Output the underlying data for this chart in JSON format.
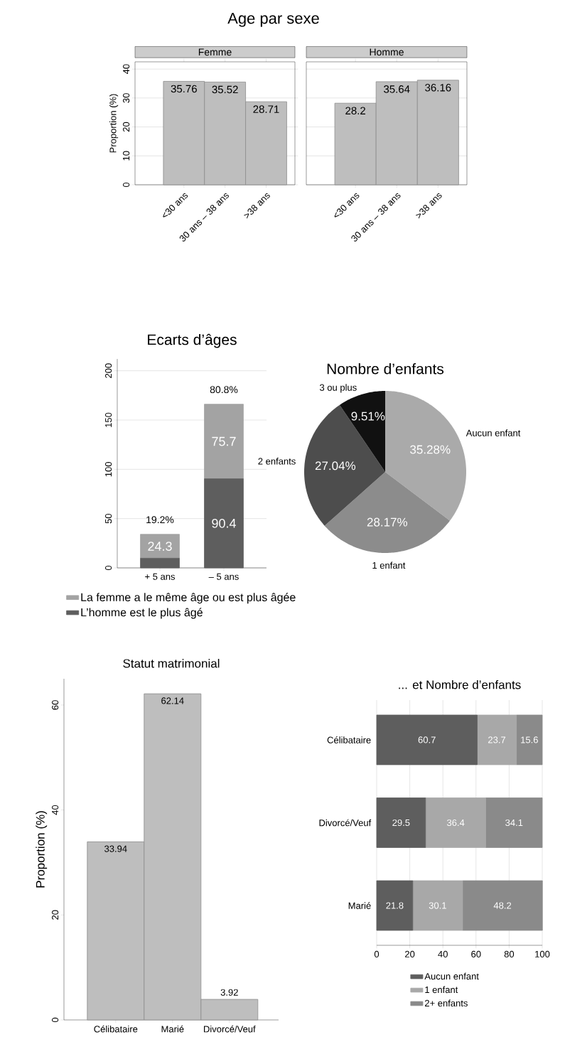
{
  "chart_data": [
    {
      "type": "bar",
      "title": "Age par sexe",
      "subtitle": "Femme",
      "ylabel": "Proportion (%)",
      "categories": [
        "<30 ans",
        "30 ans – 38 ans",
        ">38 ans"
      ],
      "values": [
        35.76,
        35.52,
        28.71
      ],
      "color": "#bebebe",
      "ylim": [
        0,
        42.5
      ],
      "yticks": [
        0,
        10,
        20,
        30,
        40
      ],
      "grid": "y",
      "data_labels": true
    },
    {
      "type": "bar",
      "subtitle": "Homme",
      "categories": [
        "<30 ans",
        "30 ans – 38 ans",
        ">38 ans"
      ],
      "values": [
        28.2,
        35.64,
        36.16
      ],
      "color": "#bebebe",
      "ylim": [
        0,
        42.5
      ],
      "yticks": [
        0,
        10,
        20,
        30,
        40
      ],
      "grid": "y",
      "data_labels": true,
      "tick_labels": "x"
    },
    {
      "type": "bar",
      "title": "Ecarts d’âges",
      "stacked": true,
      "categories": [
        "+ 5 ans",
        "– 5 ans"
      ],
      "series": [
        {
          "name": "L’homme est le plus âgé",
          "color": "#5e5e5e",
          "values": [
            9.8,
            90.4
          ],
          "value_labels": [
            null,
            "90.4"
          ]
        },
        {
          "name": "La femme a le même âge ou est plus âgée",
          "color": "#a3a3a3",
          "values": [
            24.3,
            75.7
          ],
          "value_labels": [
            "24.3",
            "75.7"
          ]
        }
      ],
      "annotations": [
        {
          "text": "19.2%",
          "x": "+ 5 ans",
          "y": 34.1
        },
        {
          "text": "80.8%",
          "x": "– 5 ans",
          "y": 166.1
        }
      ],
      "ylim": [
        0,
        212
      ],
      "yticks": [
        0,
        50,
        100,
        150,
        200
      ],
      "grid": "y",
      "legend": "bottom"
    },
    {
      "type": "pie",
      "title": "Nombre d’enfants",
      "categories": [
        "Aucun enfant",
        "1 enfant",
        "2 enfants",
        "3 ou plus"
      ],
      "values": [
        35.28,
        28.17,
        27.04,
        9.51
      ],
      "colors": [
        "#aaaaaa",
        "#8c8c8c",
        "#4d4d4d",
        "#111111"
      ],
      "value_labels": [
        "35.28%",
        "28.17%",
        "27.04%",
        "9.51%"
      ]
    },
    {
      "type": "bar",
      "title": "Statut matrimonial",
      "ylabel": "Proportion (%)",
      "categories": [
        "Célibataire",
        "Marié",
        "Divorcé/Veuf"
      ],
      "values": [
        33.94,
        62.14,
        3.92
      ],
      "color": "#bebebe",
      "ylim": [
        0,
        65
      ],
      "yticks": [
        0,
        20,
        40,
        60
      ],
      "data_labels": true
    },
    {
      "type": "bar",
      "title": "... et Nombre d’enfants",
      "orientation": "horizontal",
      "stacked": true,
      "categories": [
        "Célibataire",
        "Divorcé/Veuf",
        "Marié"
      ],
      "series": [
        {
          "name": "Aucun enfant",
          "color": "#5e5e5e",
          "values": [
            60.7,
            29.5,
            21.8
          ]
        },
        {
          "name": "1 enfant",
          "color": "#a8a8a8",
          "values": [
            23.7,
            36.4,
            30.1
          ]
        },
        {
          "name": "2+ enfants",
          "color": "#8a8a8a",
          "values": [
            15.6,
            34.1,
            48.2
          ]
        }
      ],
      "xlim": [
        0,
        100
      ],
      "xticks": [
        0,
        20,
        40,
        60,
        80,
        100
      ],
      "grid": "x",
      "legend": "bottom",
      "data_labels": true
    }
  ]
}
